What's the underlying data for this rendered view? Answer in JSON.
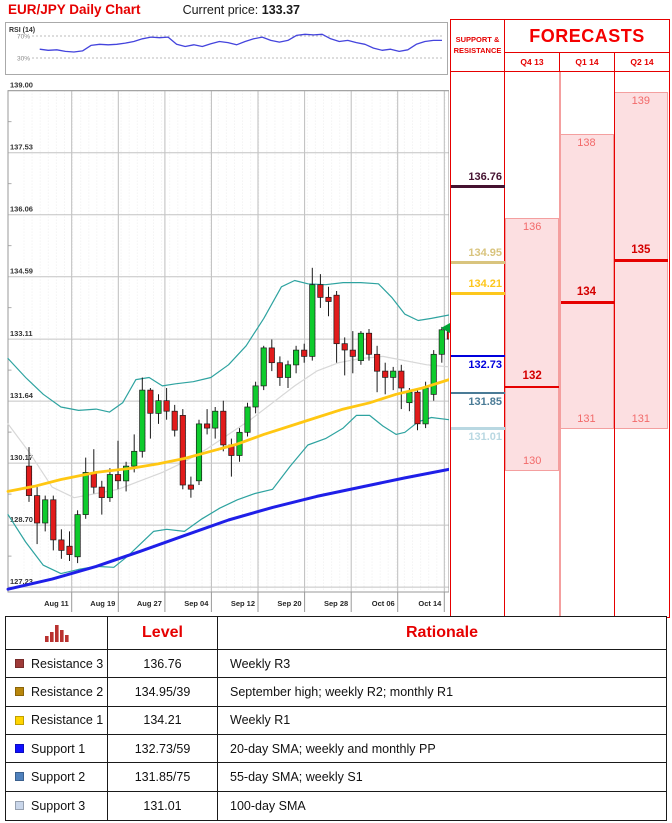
{
  "header": {
    "title": "EUR/JPY Daily Chart",
    "price_label": "Current price:",
    "price": "133.37"
  },
  "rsi": {
    "label": "RSI (14)",
    "upper_label": "70%",
    "lower_label": "30%",
    "upper": 70,
    "lower": 30,
    "series": [
      [
        0.06,
        46
      ],
      [
        0.08,
        44
      ],
      [
        0.1,
        45
      ],
      [
        0.12,
        42
      ],
      [
        0.14,
        41
      ],
      [
        0.16,
        43
      ],
      [
        0.18,
        53
      ],
      [
        0.2,
        55
      ],
      [
        0.22,
        54
      ],
      [
        0.24,
        55
      ],
      [
        0.26,
        57
      ],
      [
        0.28,
        60
      ],
      [
        0.3,
        65
      ],
      [
        0.32,
        68
      ],
      [
        0.34,
        67
      ],
      [
        0.36,
        68
      ],
      [
        0.38,
        55
      ],
      [
        0.4,
        51
      ],
      [
        0.42,
        54
      ],
      [
        0.44,
        51
      ],
      [
        0.46,
        56
      ],
      [
        0.48,
        60
      ],
      [
        0.5,
        58
      ],
      [
        0.52,
        54
      ],
      [
        0.54,
        60
      ],
      [
        0.56,
        65
      ],
      [
        0.58,
        68
      ],
      [
        0.6,
        62
      ],
      [
        0.62,
        59
      ],
      [
        0.64,
        62
      ],
      [
        0.66,
        71
      ],
      [
        0.68,
        73
      ],
      [
        0.7,
        72
      ],
      [
        0.72,
        73
      ],
      [
        0.74,
        65
      ],
      [
        0.76,
        60
      ],
      [
        0.78,
        62
      ],
      [
        0.8,
        58
      ],
      [
        0.82,
        55
      ],
      [
        0.84,
        48
      ],
      [
        0.86,
        44
      ],
      [
        0.88,
        46
      ],
      [
        0.9,
        42
      ],
      [
        0.92,
        45
      ],
      [
        0.94,
        55
      ],
      [
        0.96,
        60
      ],
      [
        0.98,
        62
      ],
      [
        1.0,
        62
      ]
    ]
  },
  "chart_data": {
    "type": "candlestick",
    "title": "EUR/JPY Daily Chart",
    "ylabel": "Price",
    "ylim": [
      127.11,
      139.0
    ],
    "y_ticks": [
      "139.00",
      "137.53",
      "136.06",
      "134.59",
      "133.11",
      "131.64",
      "130.17",
      "128.70",
      "127.23"
    ],
    "y_tick_values": [
      139.0,
      137.53,
      136.06,
      134.59,
      133.11,
      131.64,
      130.17,
      128.7,
      127.23
    ],
    "x_ticks": [
      "Aug 11",
      "Aug 19",
      "Aug 27",
      "Sep 04",
      "Sep 12",
      "Sep 20",
      "Sep 28",
      "Oct 06",
      "Oct 14"
    ],
    "grid": true,
    "candles_ohlc": [
      [
        130.1,
        130.55,
        129.25,
        129.4
      ],
      [
        129.4,
        129.6,
        128.25,
        128.75
      ],
      [
        128.75,
        129.4,
        128.55,
        129.3
      ],
      [
        129.3,
        129.4,
        128.1,
        128.35
      ],
      [
        128.35,
        128.6,
        127.9,
        128.1
      ],
      [
        128.2,
        128.55,
        127.85,
        128.0
      ],
      [
        127.95,
        129.05,
        127.8,
        128.95
      ],
      [
        128.95,
        130.3,
        128.85,
        129.95
      ],
      [
        129.95,
        130.5,
        129.45,
        129.6
      ],
      [
        129.6,
        129.75,
        128.95,
        129.35
      ],
      [
        129.35,
        130.05,
        129.25,
        129.9
      ],
      [
        129.9,
        130.7,
        129.55,
        129.75
      ],
      [
        129.75,
        130.2,
        129.5,
        130.1
      ],
      [
        130.1,
        130.85,
        129.95,
        130.45
      ],
      [
        130.45,
        132.2,
        130.3,
        131.9
      ],
      [
        131.9,
        131.95,
        130.75,
        131.35
      ],
      [
        131.35,
        131.8,
        131.1,
        131.65
      ],
      [
        131.65,
        131.95,
        131.2,
        131.4
      ],
      [
        131.4,
        131.55,
        130.8,
        130.95
      ],
      [
        131.3,
        131.45,
        129.55,
        129.65
      ],
      [
        129.65,
        129.85,
        129.35,
        129.55
      ],
      [
        129.75,
        131.2,
        129.65,
        131.1
      ],
      [
        131.1,
        131.45,
        130.85,
        131.0
      ],
      [
        131.0,
        131.5,
        130.75,
        131.4
      ],
      [
        131.4,
        131.65,
        130.45,
        130.6
      ],
      [
        130.6,
        130.75,
        129.85,
        130.35
      ],
      [
        130.35,
        131.0,
        130.2,
        130.9
      ],
      [
        130.9,
        131.6,
        130.8,
        131.5
      ],
      [
        131.5,
        132.1,
        131.35,
        132.0
      ],
      [
        132.0,
        132.95,
        131.9,
        132.9
      ],
      [
        132.9,
        133.1,
        132.35,
        132.55
      ],
      [
        132.55,
        132.7,
        132.0,
        132.2
      ],
      [
        132.2,
        132.6,
        131.95,
        132.5
      ],
      [
        132.5,
        132.95,
        132.3,
        132.85
      ],
      [
        132.85,
        133.0,
        132.55,
        132.7
      ],
      [
        132.7,
        134.8,
        132.6,
        134.4
      ],
      [
        134.4,
        134.65,
        133.85,
        134.1
      ],
      [
        134.1,
        134.35,
        133.65,
        134.0
      ],
      [
        134.15,
        134.25,
        132.55,
        133.0
      ],
      [
        133.0,
        133.15,
        132.25,
        132.85
      ],
      [
        132.85,
        133.3,
        132.3,
        132.7
      ],
      [
        132.6,
        133.3,
        132.5,
        133.25
      ],
      [
        133.25,
        133.35,
        132.6,
        132.75
      ],
      [
        132.75,
        132.95,
        131.85,
        132.35
      ],
      [
        132.35,
        132.55,
        131.8,
        132.2
      ],
      [
        132.2,
        132.45,
        131.9,
        132.35
      ],
      [
        132.35,
        132.5,
        131.45,
        131.95
      ],
      [
        131.6,
        131.95,
        131.4,
        131.85
      ],
      [
        131.85,
        131.95,
        130.95,
        131.1
      ],
      [
        131.1,
        132.1,
        131.0,
        131.95
      ],
      [
        131.8,
        132.85,
        131.65,
        132.75
      ],
      [
        132.75,
        133.4,
        132.55,
        133.33
      ],
      [
        133.28,
        133.5,
        133.0,
        133.11
      ],
      [
        133.16,
        133.52,
        133.05,
        133.37
      ]
    ],
    "overlays": {
      "sma_yellow": [
        [
          0,
          129.5
        ],
        [
          0.06,
          129.62
        ],
        [
          0.12,
          129.78
        ],
        [
          0.2,
          129.95
        ],
        [
          0.28,
          130.05
        ],
        [
          0.34,
          130.15
        ],
        [
          0.4,
          130.28
        ],
        [
          0.46,
          130.45
        ],
        [
          0.52,
          130.62
        ],
        [
          0.58,
          130.85
        ],
        [
          0.64,
          131.05
        ],
        [
          0.7,
          131.25
        ],
        [
          0.76,
          131.45
        ],
        [
          0.82,
          131.6
        ],
        [
          0.88,
          131.8
        ],
        [
          0.94,
          131.95
        ],
        [
          1,
          132.15
        ]
      ],
      "sma_blue": [
        [
          0,
          127.18
        ],
        [
          0.1,
          127.42
        ],
        [
          0.2,
          127.72
        ],
        [
          0.3,
          128.08
        ],
        [
          0.4,
          128.45
        ],
        [
          0.5,
          128.82
        ],
        [
          0.6,
          129.12
        ],
        [
          0.7,
          129.38
        ],
        [
          0.8,
          129.6
        ],
        [
          0.9,
          129.82
        ],
        [
          1,
          130.02
        ]
      ],
      "sma_gray": [
        [
          0,
          131.1
        ],
        [
          0.05,
          130.4
        ],
        [
          0.1,
          129.6
        ],
        [
          0.15,
          129.35
        ],
        [
          0.2,
          129.45
        ],
        [
          0.25,
          129.55
        ],
        [
          0.3,
          129.75
        ],
        [
          0.35,
          129.95
        ],
        [
          0.4,
          130.2
        ],
        [
          0.45,
          130.5
        ],
        [
          0.5,
          130.85
        ],
        [
          0.55,
          131.2
        ],
        [
          0.6,
          131.6
        ],
        [
          0.65,
          132.0
        ],
        [
          0.7,
          132.35
        ],
        [
          0.75,
          132.55
        ],
        [
          0.8,
          132.65
        ],
        [
          0.85,
          132.7
        ],
        [
          0.9,
          132.6
        ],
        [
          0.95,
          132.5
        ],
        [
          1,
          132.45
        ]
      ],
      "boll_upper": [
        [
          0,
          132.65
        ],
        [
          0.04,
          132.2
        ],
        [
          0.08,
          131.8
        ],
        [
          0.12,
          131.5
        ],
        [
          0.16,
          131.42
        ],
        [
          0.2,
          131.45
        ],
        [
          0.23,
          131.38
        ],
        [
          0.26,
          131.6
        ],
        [
          0.29,
          132.15
        ],
        [
          0.32,
          132.2
        ],
        [
          0.35,
          132.0
        ],
        [
          0.38,
          132.05
        ],
        [
          0.42,
          132.1
        ],
        [
          0.46,
          132.2
        ],
        [
          0.5,
          132.5
        ],
        [
          0.54,
          132.95
        ],
        [
          0.58,
          133.6
        ],
        [
          0.62,
          134.35
        ],
        [
          0.65,
          134.5
        ],
        [
          0.68,
          134.42
        ],
        [
          0.72,
          134.4
        ],
        [
          0.76,
          134.45
        ],
        [
          0.8,
          134.45
        ],
        [
          0.84,
          134.42
        ],
        [
          0.87,
          134.1
        ],
        [
          0.9,
          133.7
        ],
        [
          0.93,
          133.55
        ],
        [
          0.96,
          133.6
        ],
        [
          1,
          133.68
        ]
      ],
      "boll_lower": [
        [
          0,
          128.95
        ],
        [
          0.04,
          128.3
        ],
        [
          0.08,
          127.75
        ],
        [
          0.12,
          127.55
        ],
        [
          0.16,
          127.65
        ],
        [
          0.2,
          127.72
        ],
        [
          0.24,
          127.7
        ],
        [
          0.27,
          127.95
        ],
        [
          0.3,
          128.25
        ],
        [
          0.33,
          128.55
        ],
        [
          0.36,
          128.6
        ],
        [
          0.4,
          128.55
        ],
        [
          0.44,
          128.85
        ],
        [
          0.48,
          129.1
        ],
        [
          0.52,
          129.3
        ],
        [
          0.56,
          129.45
        ],
        [
          0.6,
          129.55
        ],
        [
          0.64,
          130.1
        ],
        [
          0.68,
          130.6
        ],
        [
          0.72,
          130.75
        ],
        [
          0.76,
          131.0
        ],
        [
          0.79,
          131.3
        ],
        [
          0.82,
          131.3
        ],
        [
          0.85,
          131.05
        ],
        [
          0.88,
          130.85
        ],
        [
          0.9,
          130.9
        ],
        [
          0.93,
          131.15
        ],
        [
          0.96,
          131.25
        ],
        [
          1,
          131.2
        ]
      ]
    },
    "colors": {
      "up": "#0ecb2d",
      "down": "#e11b1b",
      "wick": "#1a1a1a",
      "sma_yellow": "#ffc712",
      "sma_blue": "#1f1fe8",
      "boll": "#2ea3a0",
      "sma_gray": "#d8d8d8",
      "rsi": "#4444dd"
    }
  },
  "support_resistance": {
    "header": "SUPPORT & RESISTANCE",
    "levels": [
      {
        "label": "136.76",
        "price": 136.76,
        "color": "#451230",
        "side": "above",
        "thick": 3
      },
      {
        "label": "134.95",
        "price": 134.95,
        "color": "#d9c47e",
        "side": "above",
        "thick": 2.6
      },
      {
        "label": "134.21",
        "price": 134.21,
        "color": "#fdc71c",
        "side": "above",
        "thick": 2.6
      },
      {
        "label": "132.73",
        "price": 132.73,
        "color": "#0000dd",
        "side": "below",
        "thick": 2.8
      },
      {
        "label": "131.85",
        "price": 131.85,
        "color": "#4a7b96",
        "side": "below",
        "thick": 2.6
      },
      {
        "label": "131.01",
        "price": 131.01,
        "color": "#b9d8e2",
        "side": "below",
        "thick": 2.6
      }
    ],
    "current_price_marker": {
      "price": 133.37,
      "color": "#00a534"
    }
  },
  "forecasts": {
    "title": "FORECASTS",
    "columns": [
      {
        "label": "Q4 13",
        "high": 136,
        "low": 130,
        "pivot": 132
      },
      {
        "label": "Q1 14",
        "high": 138,
        "low": 131,
        "pivot": 134
      },
      {
        "label": "Q2 14",
        "high": 139,
        "low": 131,
        "pivot": 135
      }
    ]
  },
  "table": {
    "headers": [
      "",
      "Level",
      "Rationale"
    ],
    "icon": "bar-chart-icon",
    "icon_color": "#b93230",
    "rows": [
      {
        "name": "Resistance 3",
        "color": "#9e3a38",
        "level": "136.76",
        "rationale": "Weekly R3"
      },
      {
        "name": "Resistance 2",
        "color": "#b8860b",
        "level": "134.95/39",
        "rationale": "September high; weekly R2; monthly R1"
      },
      {
        "name": "Resistance 1",
        "color": "#ffd400",
        "level": "134.21",
        "rationale": "Weekly R1"
      },
      {
        "name": "Support 1",
        "color": "#0f0fff",
        "level": "132.73/59",
        "rationale": "20-day SMA; weekly and monthly PP"
      },
      {
        "name": "Support 2",
        "color": "#4f81bd",
        "level": "131.85/75",
        "rationale": "55-day SMA; weekly S1"
      },
      {
        "name": "Support 3",
        "color": "#c9d6ea",
        "level": "131.01",
        "rationale": "100-day SMA"
      }
    ]
  }
}
